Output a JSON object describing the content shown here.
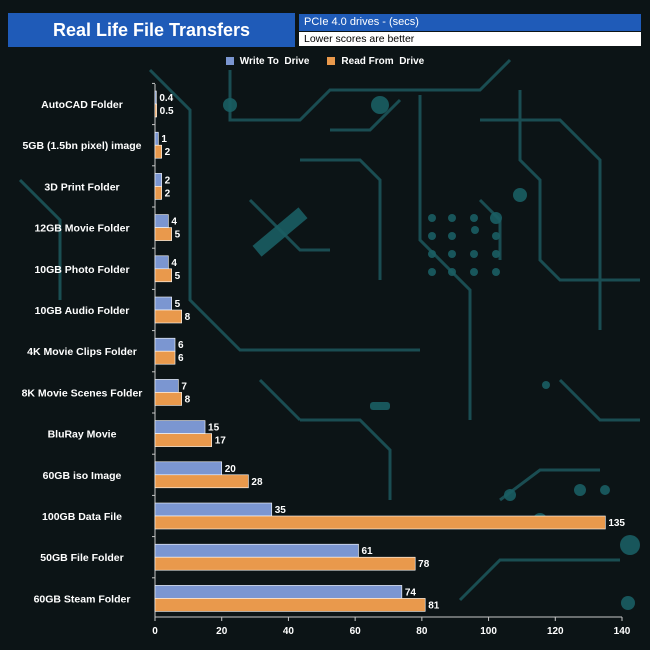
{
  "header": {
    "title": "Real Life File Transfers",
    "subtitle": "PCIe 4.0 drives - (secs)",
    "note": "Lower scores are better"
  },
  "colors": {
    "write": "#7b96d1",
    "read": "#e9994c",
    "header_bg": "#1f5bb8",
    "background": "#0c1416",
    "circuit": "#1f5f66"
  },
  "chart_data": {
    "type": "bar",
    "orientation": "horizontal",
    "title": "Real Life File Transfers",
    "subtitle": "PCIe 4.0 drives - (secs)",
    "note": "Lower scores are better",
    "categories": [
      "AutoCAD Folder",
      "5GB (1.5bn pixel) image",
      "3D Print Folder",
      "12GB Movie Folder",
      "10GB Photo Folder",
      "10GB Audio Folder",
      "4K Movie Clips Folder",
      "8K Movie Scenes Folder",
      "BluRay Movie",
      "60GB iso Image",
      "100GB Data File",
      "50GB File Folder",
      "60GB Steam Folder"
    ],
    "series": [
      {
        "name": "Write To  Drive",
        "values": [
          0.4,
          1,
          2,
          4,
          4,
          5,
          6,
          7,
          15,
          20,
          35,
          61,
          74
        ]
      },
      {
        "name": "Read From  Drive",
        "values": [
          0.5,
          2,
          2,
          5,
          5,
          8,
          6,
          8,
          17,
          28,
          135,
          78,
          81
        ]
      }
    ],
    "xlim": [
      0,
      140
    ],
    "xticks": [
      "0",
      "20",
      "40",
      "60",
      "80",
      "100",
      "120",
      "140"
    ],
    "legend_position": "top-center",
    "grid": false
  }
}
